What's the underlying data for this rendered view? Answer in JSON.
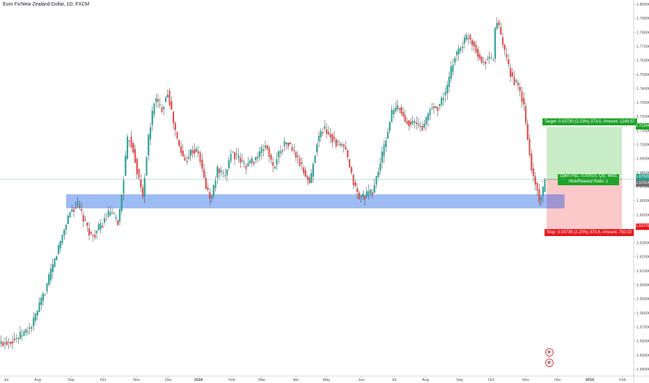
{
  "chart": {
    "title": "Euro Fx/New Zealand Dollar, 1D, FXCM"
  },
  "chart_data": {
    "type": "candlestick",
    "price_axis": {
      "range": [
        1.535,
        1.803
      ],
      "ticks": [
        "1.80000",
        "1.79000",
        "1.78000",
        "1.77000",
        "1.76000",
        "1.75000",
        "1.74000",
        "1.73000",
        "1.72000",
        "1.71000",
        "1.70000",
        "1.69000",
        "1.68000",
        "1.67000",
        "1.66000",
        "1.65000",
        "1.64000",
        "1.63000",
        "1.62000",
        "1.61000",
        "1.60000",
        "1.59000",
        "1.58000",
        "1.57000",
        "1.56000",
        "1.55000",
        "1.54000"
      ]
    },
    "time_axis": {
      "ticks": [
        "Jul",
        "Aug",
        "Sep",
        "Oct",
        "Nov",
        "Dec",
        "2018",
        "Feb",
        "Mar",
        "Apr",
        "May",
        "Jun",
        "Jul",
        "Aug",
        "Sep",
        "Oct",
        "Nov",
        "Dec",
        "2019",
        "Feb"
      ]
    },
    "price_path": [
      [
        0,
        1.558
      ],
      [
        25,
        1.562
      ],
      [
        45,
        1.57
      ],
      [
        65,
        1.596
      ],
      [
        85,
        1.628
      ],
      [
        100,
        1.652
      ],
      [
        112,
        1.657
      ],
      [
        122,
        1.644
      ],
      [
        132,
        1.634
      ],
      [
        145,
        1.642
      ],
      [
        158,
        1.652
      ],
      [
        170,
        1.644
      ],
      [
        176,
        1.67
      ],
      [
        184,
        1.707
      ],
      [
        192,
        1.695
      ],
      [
        198,
        1.678
      ],
      [
        205,
        1.663
      ],
      [
        212,
        1.7
      ],
      [
        222,
        1.733
      ],
      [
        232,
        1.725
      ],
      [
        241,
        1.738
      ],
      [
        248,
        1.718
      ],
      [
        256,
        1.7
      ],
      [
        265,
        1.688
      ],
      [
        275,
        1.696
      ],
      [
        285,
        1.694
      ],
      [
        295,
        1.671
      ],
      [
        303,
        1.66
      ],
      [
        312,
        1.682
      ],
      [
        322,
        1.676
      ],
      [
        332,
        1.695
      ],
      [
        342,
        1.69
      ],
      [
        352,
        1.685
      ],
      [
        362,
        1.688
      ],
      [
        372,
        1.693
      ],
      [
        382,
        1.7
      ],
      [
        392,
        1.683
      ],
      [
        402,
        1.696
      ],
      [
        412,
        1.702
      ],
      [
        425,
        1.692
      ],
      [
        435,
        1.682
      ],
      [
        445,
        1.672
      ],
      [
        455,
        1.702
      ],
      [
        465,
        1.712
      ],
      [
        475,
        1.706
      ],
      [
        485,
        1.7
      ],
      [
        495,
        1.698
      ],
      [
        505,
        1.677
      ],
      [
        515,
        1.662
      ],
      [
        525,
        1.664
      ],
      [
        535,
        1.666
      ],
      [
        545,
        1.685
      ],
      [
        555,
        1.705
      ],
      [
        562,
        1.722
      ],
      [
        572,
        1.727
      ],
      [
        582,
        1.717
      ],
      [
        595,
        1.715
      ],
      [
        608,
        1.712
      ],
      [
        618,
        1.726
      ],
      [
        630,
        1.727
      ],
      [
        642,
        1.74
      ],
      [
        652,
        1.762
      ],
      [
        662,
        1.77
      ],
      [
        672,
        1.778
      ],
      [
        682,
        1.77
      ],
      [
        692,
        1.758
      ],
      [
        700,
        1.762
      ],
      [
        708,
        1.76
      ],
      [
        712,
        1.79
      ],
      [
        718,
        1.78
      ],
      [
        726,
        1.762
      ],
      [
        735,
        1.748
      ],
      [
        745,
        1.74
      ],
      [
        752,
        1.728
      ],
      [
        758,
        1.702
      ],
      [
        764,
        1.68
      ],
      [
        770,
        1.67
      ],
      [
        775,
        1.66
      ],
      [
        779,
        1.665
      ],
      [
        783,
        1.6745
      ]
    ],
    "support_zone": {
      "from": 1.6545,
      "to": 1.6645
    },
    "position": {
      "side": "long",
      "entry": 1.67514,
      "target_price": 1.71244,
      "stop_price": 1.63778,
      "target_label": "Target: 0.03730 (2.23%) 373.0, Amount: 1249.57",
      "stop_label": "Stop: 0.03736 (2.23%) 373.6, Amount: 750.02",
      "open_pnl_label": "Open P&L: 0.00015, Qty: 6691",
      "rr_label": "Risk/Reward Ratio: 1"
    },
    "price_tags": {
      "target": "1.71244",
      "last": "1.67529",
      "entry": "1.67514",
      "stop": "1.63778"
    },
    "colors": {
      "up": "#26a69a",
      "down": "#ef5350",
      "support": "#7ea6f0",
      "target_fill": "#c8ecc4",
      "stop_fill": "#fbc9c9",
      "target_tag": "#1fa32a",
      "stop_tag": "#e8161d",
      "last_tag": "#2aa08f",
      "entry_tag": "#707070"
    }
  }
}
